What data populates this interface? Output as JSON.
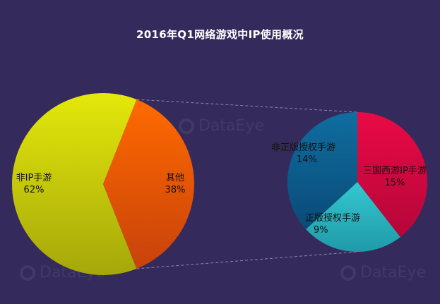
{
  "title": "2016年Q1网络游戏中IP使用概况",
  "watermark": "DataEye",
  "colors": {
    "background": "#342b5c",
    "connector": "#8a86b0"
  },
  "chart_data": [
    {
      "type": "pie",
      "slices": [
        {
          "label": "非IP手游",
          "value": 62,
          "value_label": "62%",
          "color_top": "#e4e80a",
          "color_bottom": "#a5a70a"
        },
        {
          "label": "其他",
          "value": 38,
          "value_label": "38%",
          "color_top": "#ff6a00",
          "color_bottom": "#c8420b"
        }
      ]
    },
    {
      "type": "pie",
      "slices": [
        {
          "label": "三国西游IP手游",
          "value": 15,
          "value_label": "15%",
          "color_top": "#ea0a45",
          "color_bottom": "#b4063a"
        },
        {
          "label": "正版授权手游",
          "value": 9,
          "value_label": "9%",
          "color_top": "#34c8d0",
          "color_bottom": "#1f9aa8"
        },
        {
          "label": "非正版授权手游",
          "value": 14,
          "value_label": "14%",
          "color_top": "#0f6ea0",
          "color_bottom": "#0a4a78"
        }
      ]
    }
  ]
}
